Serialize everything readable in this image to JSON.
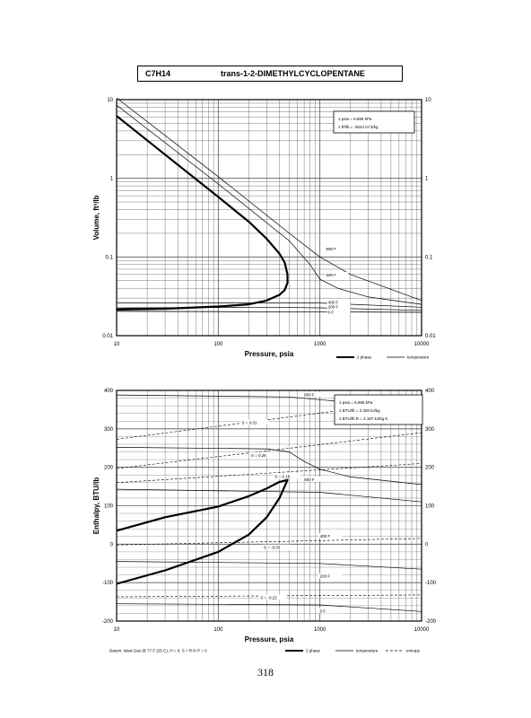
{
  "page": {
    "number": "318"
  },
  "header": {
    "formula": "C7H14",
    "name": "trans-1-2-DIMETHYLCYCLOPENTANE"
  },
  "chart_data": [
    {
      "type": "line",
      "xlabel": "Pressure,  psia",
      "ylabel": "Volume,  ft^3/lb",
      "xscale": "log",
      "yscale": "log",
      "xlim": [
        10,
        10000
      ],
      "ylim": [
        0.01,
        10
      ],
      "xticks": [
        "10",
        "100",
        "1000",
        "10000"
      ],
      "yticks_left": [
        "10",
        "1",
        "0.1",
        "0.01"
      ],
      "yticks_right": [
        "10",
        "1",
        "0.1",
        "0.01"
      ],
      "grid": true,
      "note_box": [
        "1 psia  =  6.895 kPa",
        "1 ft^3/lb  =  .0624 m^3/kg"
      ],
      "legend": [
        {
          "label": "2 phase",
          "style": "thick"
        },
        {
          "label": "temperature",
          "style": "thin"
        }
      ],
      "saturation": {
        "liquid": {
          "x": [
            10,
            30,
            100,
            200,
            300,
            400,
            450,
            480
          ],
          "y": [
            0.0215,
            0.022,
            0.0235,
            0.025,
            0.028,
            0.033,
            0.038,
            0.047
          ]
        },
        "vapor": {
          "x": [
            10,
            30,
            100,
            200,
            300,
            400,
            450,
            480
          ],
          "y": [
            6.2,
            2.0,
            0.58,
            0.28,
            0.17,
            0.11,
            0.085,
            0.06
          ]
        }
      },
      "series": [
        {
          "name": "0 F",
          "x": [
            10,
            10000
          ],
          "y": [
            0.0205,
            0.0198
          ]
        },
        {
          "name": "200 F",
          "x": [
            10,
            300,
            1000,
            10000
          ],
          "y": [
            0.0225,
            0.023,
            0.0226,
            0.021
          ]
        },
        {
          "name": "400 F",
          "x": [
            10,
            1000,
            10000
          ],
          "y": [
            0.026,
            0.026,
            0.023
          ]
        },
        {
          "name": "600 F",
          "x": [
            10,
            100,
            500,
            800,
            1000,
            1500,
            3000,
            10000
          ],
          "y": [
            8.5,
            0.85,
            0.16,
            0.08,
            0.052,
            0.04,
            0.031,
            0.025
          ]
        },
        {
          "name": "800 F",
          "x": [
            10,
            100,
            500,
            1000,
            2000,
            10000
          ],
          "y": [
            10.5,
            1.05,
            0.2,
            0.1,
            0.06,
            0.028
          ]
        }
      ]
    },
    {
      "type": "line",
      "xlabel": "Pressure,  psia",
      "ylabel": "Enthalpy,  BTU/lb",
      "xscale": "log",
      "xlim": [
        10,
        10000
      ],
      "ylim": [
        -200,
        400
      ],
      "xticks": [
        "10",
        "100",
        "1000",
        "10000"
      ],
      "yticks_left": [
        "400",
        "300",
        "200",
        "100",
        "0",
        "-100",
        "-200"
      ],
      "yticks_right": [
        "400",
        "300",
        "200",
        "100",
        "0",
        "-100",
        "-200"
      ],
      "grid": true,
      "note_box": [
        "1 psia  =  6.895 kPa",
        "1 BTU/lb  =  2.326 kJ/kg",
        "1 BTU/lb R  =  4.187 kJ/kg K"
      ],
      "footnote": "Datum: Ideal Gas @ 77 F (25 C),  H = 0,  S + R ln P = 0",
      "legend": [
        {
          "label": "2 phase",
          "style": "thick"
        },
        {
          "label": "temperature",
          "style": "thin"
        },
        {
          "label": "entropy",
          "style": "dashed"
        }
      ],
      "saturation": {
        "vapor": {
          "x": [
            10,
            30,
            100,
            200,
            300,
            400,
            480
          ],
          "y": [
            35,
            70,
            98,
            125,
            145,
            162,
            167
          ]
        },
        "liquid": {
          "x": [
            10,
            30,
            100,
            200,
            300,
            400,
            480
          ],
          "y": [
            -103,
            -68,
            -20,
            25,
            70,
            120,
            167
          ]
        }
      },
      "series": [
        {
          "name": "800 F",
          "x": [
            10,
            500,
            1000,
            10000
          ],
          "y": [
            388,
            383,
            376,
            352
          ]
        },
        {
          "name": "600 F",
          "x": [
            10,
            300,
            500,
            700,
            1000,
            2000,
            10000
          ],
          "y": [
            252,
            248,
            240,
            215,
            195,
            175,
            155
          ]
        },
        {
          "name": "400 F",
          "x": [
            10,
            1000,
            10000
          ],
          "y": [
            143,
            135,
            110
          ]
        },
        {
          "name": "200 F",
          "x": [
            10,
            1000,
            10000
          ],
          "y": [
            -45,
            -50,
            -65
          ]
        },
        {
          "name": "0 F",
          "x": [
            10,
            1000,
            10000
          ],
          "y": [
            -155,
            -158,
            -175
          ]
        }
      ],
      "entropy": [
        {
          "name": "S = 0.31",
          "x": [
            10,
            10000
          ],
          "y": [
            273,
            375
          ]
        },
        {
          "name": "S = 0.26",
          "x": [
            10,
            10000
          ],
          "y": [
            197,
            290
          ]
        },
        {
          "name": "S = 0.16",
          "x": [
            10,
            10000
          ],
          "y": [
            160,
            210
          ]
        },
        {
          "name": "S = -0.03",
          "x": [
            10,
            10000
          ],
          "y": [
            -2,
            15
          ]
        },
        {
          "name": "S = -0.22",
          "x": [
            10,
            10000
          ],
          "y": [
            -137,
            -132
          ]
        }
      ]
    }
  ]
}
